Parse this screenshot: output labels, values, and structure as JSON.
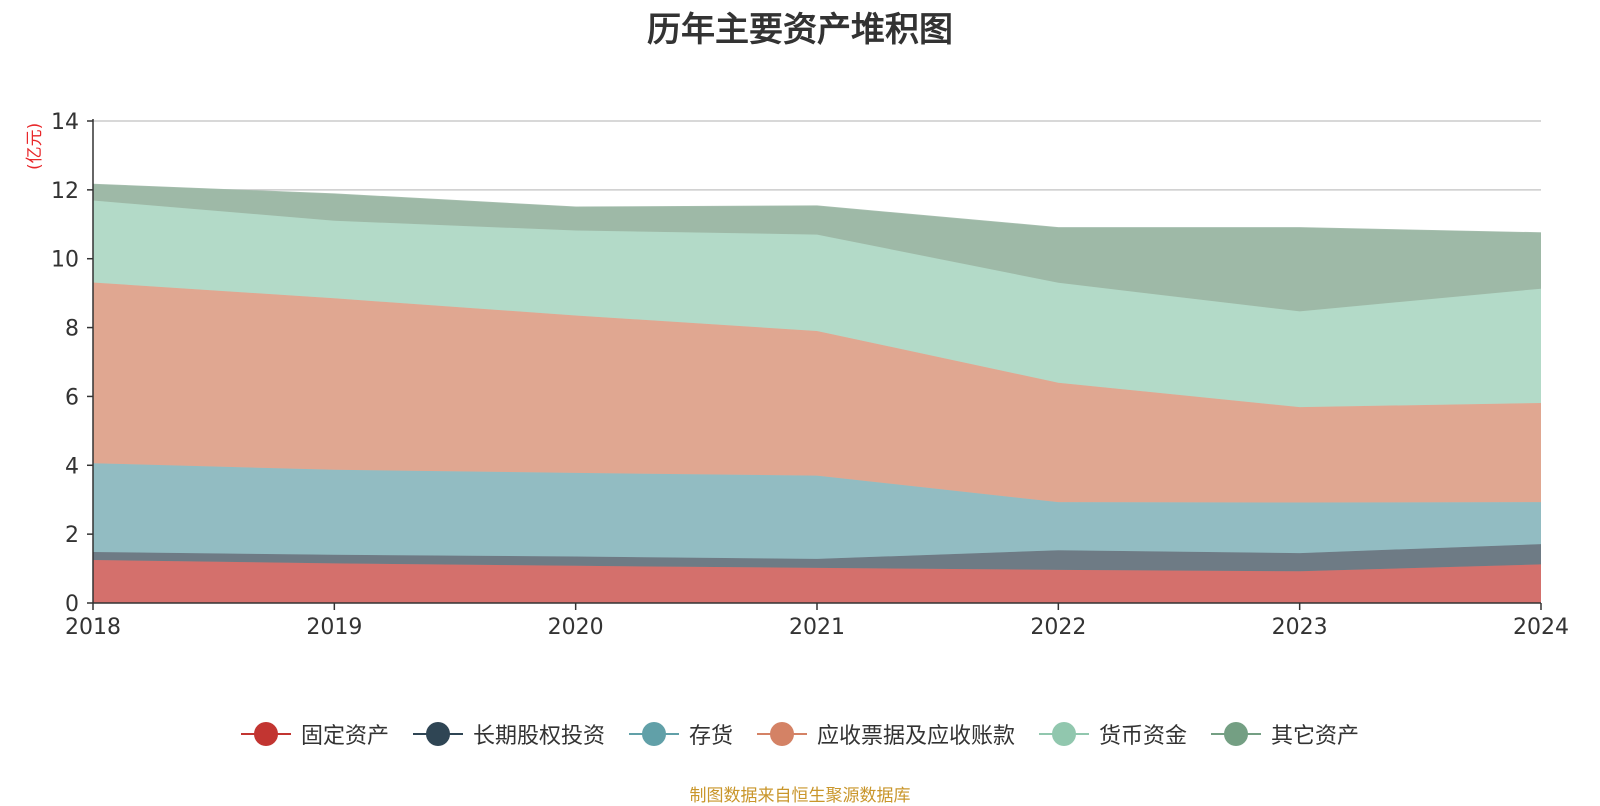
{
  "chart_data": {
    "type": "area",
    "stacked": true,
    "title": "历年主要资产堆积图",
    "unit": "(亿元)",
    "x": [
      "2018",
      "2019",
      "2020",
      "2021",
      "2022",
      "2023",
      "2024"
    ],
    "ylim": [
      0,
      14
    ],
    "yticks": [
      0,
      2,
      4,
      6,
      8,
      10,
      12,
      14
    ],
    "grid": true,
    "legend_position": "bottom",
    "series": [
      {
        "name": "固定资产",
        "color": "#c23531",
        "fill": "#d4706c",
        "values": [
          1.25,
          1.15,
          1.08,
          1.02,
          0.96,
          0.92,
          1.12
        ]
      },
      {
        "name": "长期股权投资",
        "color": "#2f4554",
        "fill": "#6e7b85",
        "values": [
          0.23,
          0.25,
          0.27,
          0.26,
          0.57,
          0.53,
          0.59
        ]
      },
      {
        "name": "存货",
        "color": "#61a0a8",
        "fill": "#92bcc2",
        "values": [
          2.58,
          2.47,
          2.43,
          2.42,
          1.4,
          1.47,
          1.22
        ]
      },
      {
        "name": "应收票据及应收账款",
        "color": "#d48265",
        "fill": "#e0a791",
        "values": [
          5.25,
          4.98,
          4.57,
          4.2,
          3.47,
          2.77,
          2.88
        ]
      },
      {
        "name": "货币资金",
        "color": "#91c7ae",
        "fill": "#b3dac8",
        "values": [
          2.38,
          2.25,
          2.47,
          2.8,
          2.9,
          2.78,
          3.32
        ]
      },
      {
        "name": "其它资产",
        "color": "#749f83",
        "fill": "#9eb9a7",
        "values": [
          0.47,
          0.78,
          0.68,
          0.83,
          1.6,
          2.43,
          1.62
        ]
      }
    ]
  },
  "source": "制图数据来自恒生聚源数据库"
}
